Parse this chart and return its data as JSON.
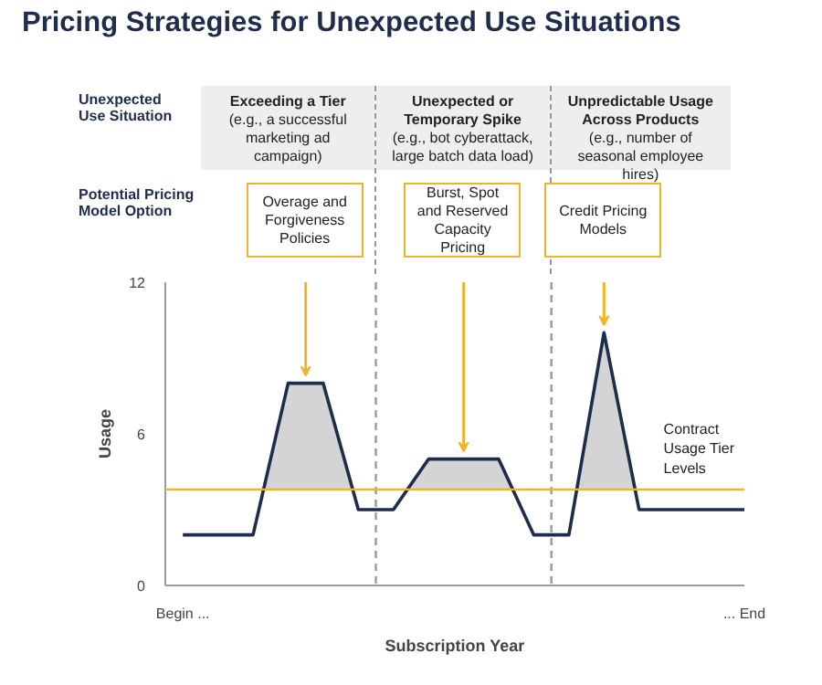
{
  "chart_data": {
    "type": "line",
    "title": "Pricing Strategies for Unexpected Use Situations",
    "xlabel": "Subscription Year",
    "ylabel": "Usage",
    "categories": [
      "Begin ...",
      null,
      null,
      null,
      null,
      null,
      null,
      null,
      null,
      null,
      null,
      null,
      null,
      null,
      null,
      null,
      "... End"
    ],
    "series": [
      {
        "color": "#1f2d4d",
        "values": [
          2,
          2,
          2,
          8,
          8,
          3,
          3,
          5,
          5,
          5,
          2,
          2,
          10,
          3,
          3,
          3,
          3
        ],
        "lower": [
          3.8,
          3.8,
          3.8,
          3.8,
          3.8,
          3.8,
          3.8,
          3.8,
          3.8,
          3.8,
          3.8,
          3.8,
          3.8,
          3.8,
          3.8,
          3.8,
          3.8
        ],
        "upper": [
          3.8,
          3.8,
          3.8,
          8,
          8,
          3.8,
          3.8,
          5,
          5,
          5,
          3.8,
          3.8,
          10,
          3.8,
          3.8,
          3.8,
          3.8
        ]
      }
    ],
    "ylim": [
      0,
      12
    ],
    "yticks": [
      0,
      6,
      12
    ],
    "grid": false,
    "marker": "none",
    "line_style": "solid",
    "ref_lines": [
      {
        "axis": "y",
        "value": 3.8,
        "label": "Contract Usage Tier Levels",
        "color": "#f0b429",
        "line_style": "solid"
      }
    ],
    "annotations": [
      "Unexpected Use Situation",
      "Exceeding a Tier\n(e.g., a successful marketing ad campaign)",
      "Unexpected or Temporary Spike\n(e.g., bot cyberattack, large batch data load)",
      "Unpredictable Usage Across Products\n(e.g., number of seasonal employee hires)",
      "Potential Pricing Model Option",
      "Overage and Forgiveness Policies",
      "Burst, Spot and Reserved Capacity Pricing",
      "Credit Pricing Models"
    ]
  }
}
